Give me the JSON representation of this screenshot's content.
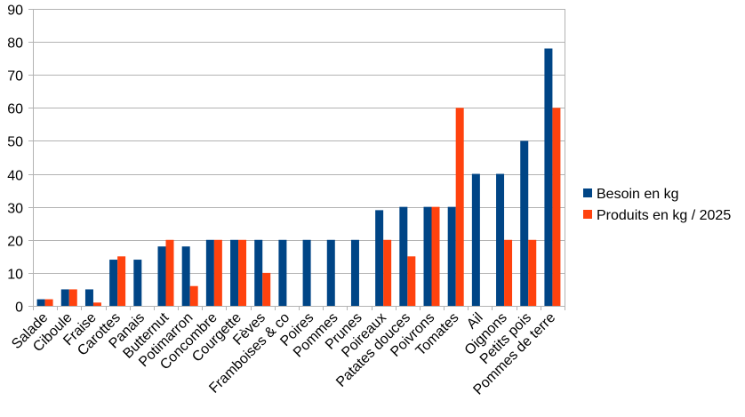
{
  "chart_data": {
    "type": "bar",
    "title": "",
    "xlabel": "",
    "ylabel": "",
    "ylim": [
      0,
      90
    ],
    "yticks": [
      0,
      10,
      20,
      30,
      40,
      50,
      60,
      70,
      80,
      90
    ],
    "grid": true,
    "legend_position": "right",
    "categories": [
      "Salade",
      "Ciboule",
      "Fraise",
      "Carottes",
      "Panais",
      "Butternut",
      "Potimarron",
      "Concombre",
      "Courgette",
      "Fèves",
      "Framboises & co",
      "Poires",
      "Pommes",
      "Prunes",
      "Poireaux",
      "Patates douces",
      "Poivrons",
      "Tomates",
      "Ail",
      "Oignons",
      "Petits pois",
      "Pommes de terre"
    ],
    "series": [
      {
        "name": "Besoin en kg",
        "color": "#004586",
        "values": [
          2,
          5,
          5,
          14,
          14,
          18,
          18,
          20,
          20,
          20,
          20,
          20,
          20,
          20,
          29,
          30,
          30,
          30,
          40,
          40,
          50,
          78
        ]
      },
      {
        "name": "Produits en kg / 2025",
        "color": "#ff420e",
        "values": [
          2,
          5,
          1,
          15,
          0,
          20,
          6,
          20,
          20,
          10,
          0,
          0,
          0,
          0,
          20,
          15,
          30,
          60,
          0,
          20,
          20,
          60
        ]
      }
    ]
  }
}
